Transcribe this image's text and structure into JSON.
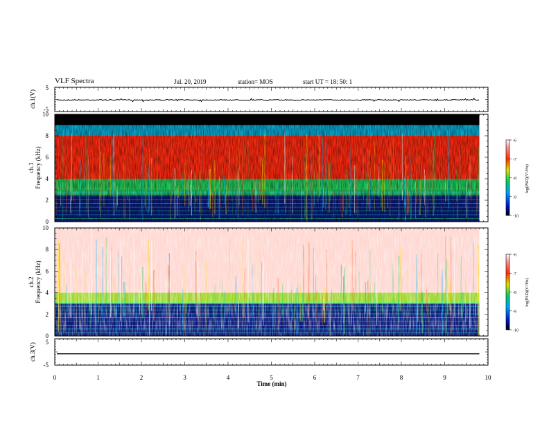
{
  "header": {
    "title": "VLF Spectra",
    "date": "Jul. 20, 2019",
    "station": "station= MOS",
    "start": "start  UT =   18: 50: 1"
  },
  "chart_data": [
    {
      "type": "line",
      "ylabel": "ch.1(V)",
      "ylim": [
        -5,
        5
      ],
      "yticks": [
        "5",
        "-5"
      ],
      "xlim": [
        0,
        10
      ],
      "series": [
        {
          "y_level": -0.2
        }
      ]
    },
    {
      "type": "heatmap",
      "ylabel": "ch.1\nFrequency (kHz)",
      "ylim": [
        0,
        10
      ],
      "yticks": [
        "0",
        "2",
        "4",
        "6",
        "8",
        "10"
      ],
      "xlim": [
        0,
        10
      ],
      "data_extent_x": [
        0,
        9.8
      ],
      "colorbar": {
        "label": "log(PSD)(V²/Hz)",
        "range": [
          -10,
          -6
        ],
        "ticks": [
          "-6",
          "-7",
          "-8",
          "-9",
          "-10"
        ]
      },
      "bands": [
        {
          "from": 9.0,
          "to": 10.0,
          "level": "black"
        },
        {
          "from": 8.0,
          "to": 9.0,
          "level": "blue-green"
        },
        {
          "from": 4.0,
          "to": 8.0,
          "level": "red"
        },
        {
          "from": 2.5,
          "to": 4.0,
          "level": "green"
        },
        {
          "from": 0.0,
          "to": 2.5,
          "level": "blue-black"
        }
      ]
    },
    {
      "type": "heatmap",
      "ylabel": "ch.2\nFrequency (kHz)",
      "ylim": [
        0,
        10
      ],
      "yticks": [
        "0",
        "2",
        "4",
        "6",
        "8",
        "10"
      ],
      "xlim": [
        0,
        10
      ],
      "data_extent_x": [
        0,
        9.8
      ],
      "colorbar": {
        "label": "log(PSD)(V²/Hz)",
        "range": [
          -10,
          -6
        ],
        "ticks": [
          "-6",
          "-7",
          "-8",
          "-9",
          "-10"
        ]
      },
      "bands": [
        {
          "from": 4.0,
          "to": 10.0,
          "level": "sparse-red"
        },
        {
          "from": 3.0,
          "to": 4.0,
          "level": "yellow-green"
        },
        {
          "from": 0.0,
          "to": 3.0,
          "level": "blue-black"
        }
      ]
    },
    {
      "type": "line",
      "ylabel": "ch.3(V)",
      "ylim": [
        -5,
        5
      ],
      "yticks": [
        "5",
        "-5"
      ],
      "xlim": [
        0,
        10
      ],
      "xticks": [
        "0",
        "1",
        "2",
        "3",
        "4",
        "5",
        "6",
        "7",
        "8",
        "9",
        "10"
      ],
      "xlabel": "Time (min)",
      "series": [
        {
          "y_level": -0.7
        }
      ]
    }
  ]
}
